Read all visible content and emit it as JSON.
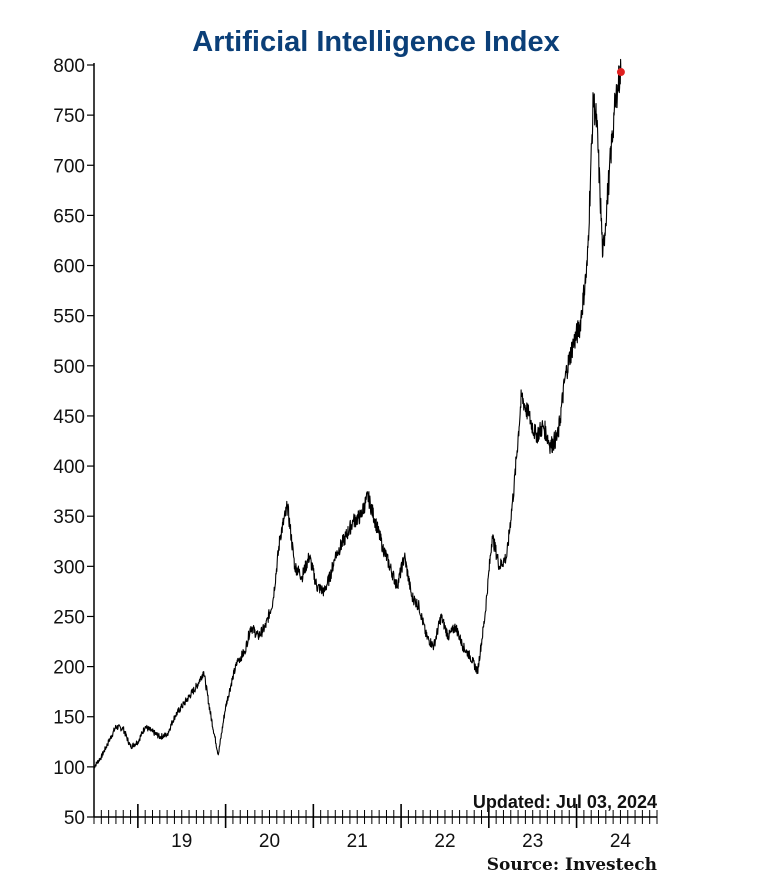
{
  "chart_data": {
    "type": "line",
    "title": "Artificial Intelligence Index",
    "updated_label": "Updated: Jul 03, 2024",
    "source_label": "Source:  Investech",
    "xlabel": "",
    "ylabel": "",
    "ylim": [
      50,
      800
    ],
    "y_ticks": [
      50,
      100,
      150,
      200,
      250,
      300,
      350,
      400,
      450,
      500,
      550,
      600,
      650,
      700,
      750,
      800
    ],
    "x_ticks": [
      {
        "label": "19",
        "year": 2019
      },
      {
        "label": "20",
        "year": 2020
      },
      {
        "label": "21",
        "year": 2021
      },
      {
        "label": "22",
        "year": 2022
      },
      {
        "label": "23",
        "year": 2023
      },
      {
        "label": "24",
        "year": 2024
      }
    ],
    "x_range": [
      "2018-07",
      "2024-12"
    ],
    "line_color": "#000000",
    "marker_color": "#e02020",
    "last_point": {
      "x": "2024-07-03",
      "y": 793
    },
    "series": [
      {
        "x": [
          "2018-07-01",
          "2018-08-01",
          "2018-09-01",
          "2018-10-01",
          "2018-11-01",
          "2018-12-01",
          "2019-01-01",
          "2019-02-01",
          "2019-03-01",
          "2019-04-01",
          "2019-05-01",
          "2019-06-01",
          "2019-07-01",
          "2019-08-01",
          "2019-09-01",
          "2019-10-01",
          "2019-11-01",
          "2019-12-01",
          "2020-01-01",
          "2020-02-01",
          "2020-02-20",
          "2020-03-20",
          "2020-04-15",
          "2020-05-15",
          "2020-06-15",
          "2020-07-15",
          "2020-08-15",
          "2020-09-15",
          "2020-10-15",
          "2020-11-15",
          "2020-12-15",
          "2021-01-15",
          "2021-02-15",
          "2021-03-10",
          "2021-04-01",
          "2021-05-15",
          "2021-06-15",
          "2021-07-15",
          "2021-08-15",
          "2021-09-15",
          "2021-10-15",
          "2021-11-15",
          "2021-12-15",
          "2022-01-15",
          "2022-02-15",
          "2022-03-15",
          "2022-04-15",
          "2022-05-15",
          "2022-06-15",
          "2022-07-15",
          "2022-08-15",
          "2022-09-15",
          "2022-10-15",
          "2022-11-15",
          "2022-12-15",
          "2023-01-15",
          "2023-02-15",
          "2023-03-15",
          "2023-04-15",
          "2023-05-15",
          "2023-06-15",
          "2023-07-15",
          "2023-08-15",
          "2023-09-15",
          "2023-10-15",
          "2023-11-15",
          "2023-12-15",
          "2024-01-15",
          "2024-02-15",
          "2024-03-10",
          "2024-03-25",
          "2024-04-19",
          "2024-05-15",
          "2024-06-05",
          "2024-06-20",
          "2024-07-03"
        ],
        "y": [
          100,
          110,
          125,
          140,
          138,
          120,
          125,
          140,
          135,
          130,
          132,
          150,
          160,
          170,
          180,
          195,
          150,
          112,
          160,
          190,
          205,
          215,
          240,
          230,
          240,
          265,
          330,
          360,
          300,
          290,
          310,
          280,
          275,
          290,
          310,
          330,
          345,
          350,
          370,
          345,
          320,
          300,
          280,
          310,
          270,
          260,
          230,
          220,
          250,
          230,
          240,
          220,
          210,
          195,
          250,
          330,
          300,
          310,
          380,
          470,
          450,
          430,
          440,
          420,
          430,
          490,
          520,
          540,
          600,
          765,
          740,
          610,
          690,
          750,
          780,
          793
        ]
      }
    ]
  }
}
